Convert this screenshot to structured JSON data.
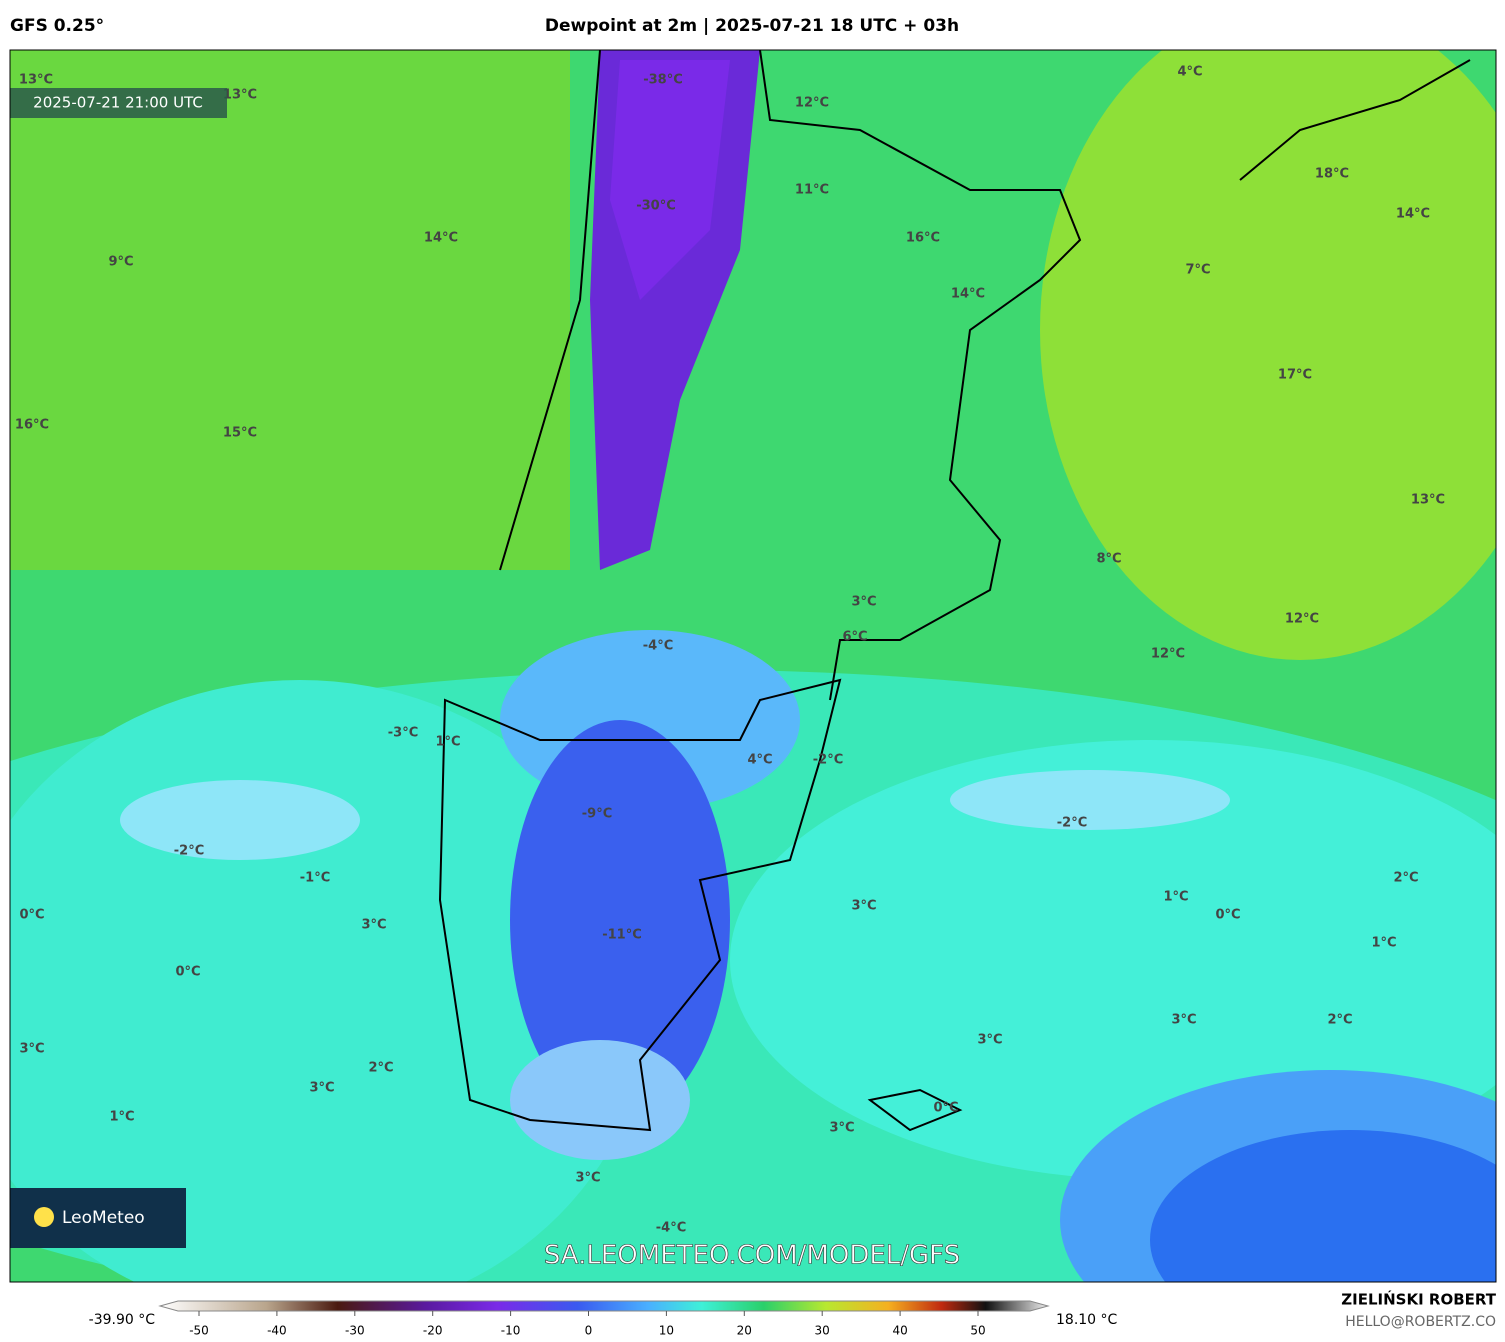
{
  "header": {
    "model": "GFS 0.25°",
    "title": "Dewpoint at 2m | 2025-07-21 18 UTC + 03h"
  },
  "map": {
    "valid_time": "2025-07-21 21:00 UTC",
    "watermark": "SA.LEOMETEO.COM/MODEL/GFS",
    "logo": "LeoMeteo",
    "labels": [
      "13°C",
      "13°C",
      "-38°C",
      "4°C",
      "12°C",
      "18°C",
      "11°C",
      "-30°C",
      "14°C",
      "14°C",
      "16°C",
      "9°C",
      "7°C",
      "14°C",
      "17°C",
      "16°C",
      "15°C",
      "13°C",
      "8°C",
      "3°C",
      "6°C",
      "12°C",
      "-4°C",
      "12°C",
      "-3°C",
      "1°C",
      "4°C",
      "-2°C",
      "-9°C",
      "-2°C",
      "-2°C",
      "-1°C",
      "2°C",
      "1°C",
      "3°C",
      "0°C",
      "0°C",
      "3°C",
      "-11°C",
      "1°C",
      "0°C",
      "3°C",
      "2°C",
      "3°C",
      "3°C",
      "3°C",
      "2°C",
      "0°C",
      "1°C",
      "3°C",
      "3°C",
      "-4°C"
    ]
  },
  "colorbar": {
    "min_label": "-39.90 °C",
    "max_label": "18.10 °C",
    "ticks": [
      -50,
      -40,
      -30,
      -20,
      -10,
      0,
      10,
      20,
      30,
      40,
      50
    ]
  },
  "credits": {
    "author": "ZIELIŃSKI ROBERT",
    "contact": "HELLO@ROBERTZ.CO"
  }
}
